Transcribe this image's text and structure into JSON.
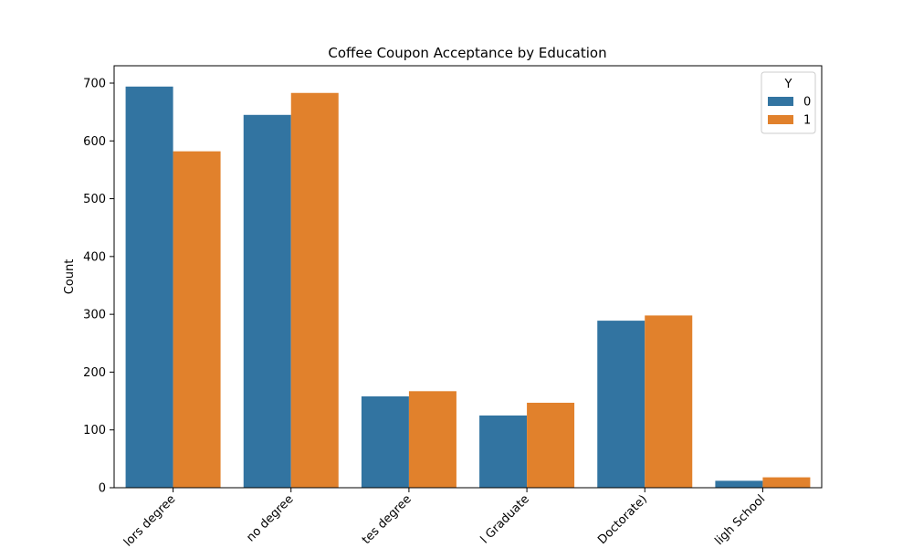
{
  "chart_data": {
    "type": "bar",
    "title": "Coffee Coupon Acceptance by Education",
    "xlabel": "",
    "ylabel": "Count",
    "ylim": [
      0,
      730
    ],
    "yticks": [
      0,
      100,
      200,
      300,
      400,
      500,
      600,
      700
    ],
    "ytick_labels": [
      "0",
      "100",
      "200",
      "300",
      "400",
      "500",
      "600",
      "700"
    ],
    "categories": [
      "Bachelors degree",
      "Some college - no degree",
      "Associates degree",
      "High School Graduate",
      "Graduate degree (Masters or Doctorate)",
      "Some High School"
    ],
    "visible_tick_labels": [
      "lors degree",
      "no degree",
      "tes degree",
      "l Graduate",
      "Doctorate)",
      "ligh School"
    ],
    "legend": {
      "title": "Y",
      "placement": "top-right"
    },
    "series": [
      {
        "name": "0",
        "color": "#3274a1",
        "values": [
          694,
          645,
          158,
          125,
          289,
          12
        ]
      },
      {
        "name": "1",
        "color": "#e1812c",
        "values": [
          582,
          683,
          167,
          147,
          298,
          18
        ]
      }
    ],
    "grid": false
  }
}
